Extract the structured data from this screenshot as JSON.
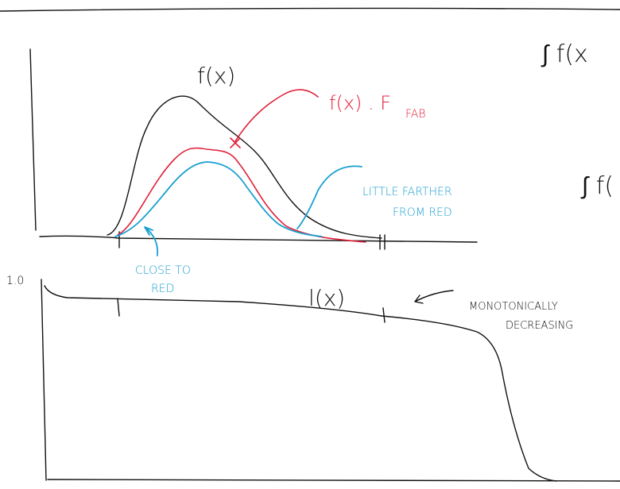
{
  "labels": {
    "f_top": "f(x)",
    "f_fab": "f(x) . F",
    "f_fab_sub": "FAB",
    "farther_1": "LITTLE FARTHER",
    "farther_2": "FROM RED",
    "close_1": "CLOSE TO",
    "close_2": "RED",
    "one": "1.0",
    "l_x": "l(x)",
    "mono_1": "MONOTONICALLY",
    "mono_2": "DECREASING",
    "integral_1": "∫ f(x",
    "integral_2": "∫ f("
  }
}
